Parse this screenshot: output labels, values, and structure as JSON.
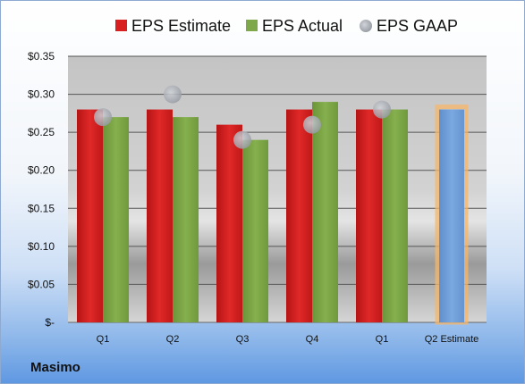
{
  "company": "Masimo",
  "chart_data": {
    "type": "bar",
    "categories": [
      "Q1",
      "Q2",
      "Q3",
      "Q4",
      "Q1",
      "Q2 Estimate"
    ],
    "series": [
      {
        "name": "EPS Estimate",
        "values": [
          0.28,
          0.28,
          0.26,
          0.28,
          0.28,
          null
        ],
        "color": "#d82020"
      },
      {
        "name": "EPS Actual",
        "values": [
          0.27,
          0.27,
          0.24,
          0.29,
          0.28,
          null
        ],
        "color": "#7ea84a"
      },
      {
        "name": "EPS GAAP",
        "type": "scatter",
        "values": [
          0.27,
          0.3,
          0.24,
          0.26,
          0.28,
          null
        ],
        "color": "#b5b9c0"
      },
      {
        "name": "Q2 Estimate",
        "values": [
          null,
          null,
          null,
          null,
          null,
          0.28
        ],
        "color": "#6f9fd8",
        "highlight": "#f5b56a"
      }
    ],
    "legend": {
      "entries": [
        "EPS Estimate",
        "EPS Actual",
        "EPS GAAP"
      ],
      "position": "top"
    },
    "y_ticks": [
      "$-",
      "$0.05",
      "$0.10",
      "$0.15",
      "$0.20",
      "$0.25",
      "$0.30",
      "$0.35"
    ],
    "ylim": [
      0,
      0.35
    ],
    "grid": true
  }
}
